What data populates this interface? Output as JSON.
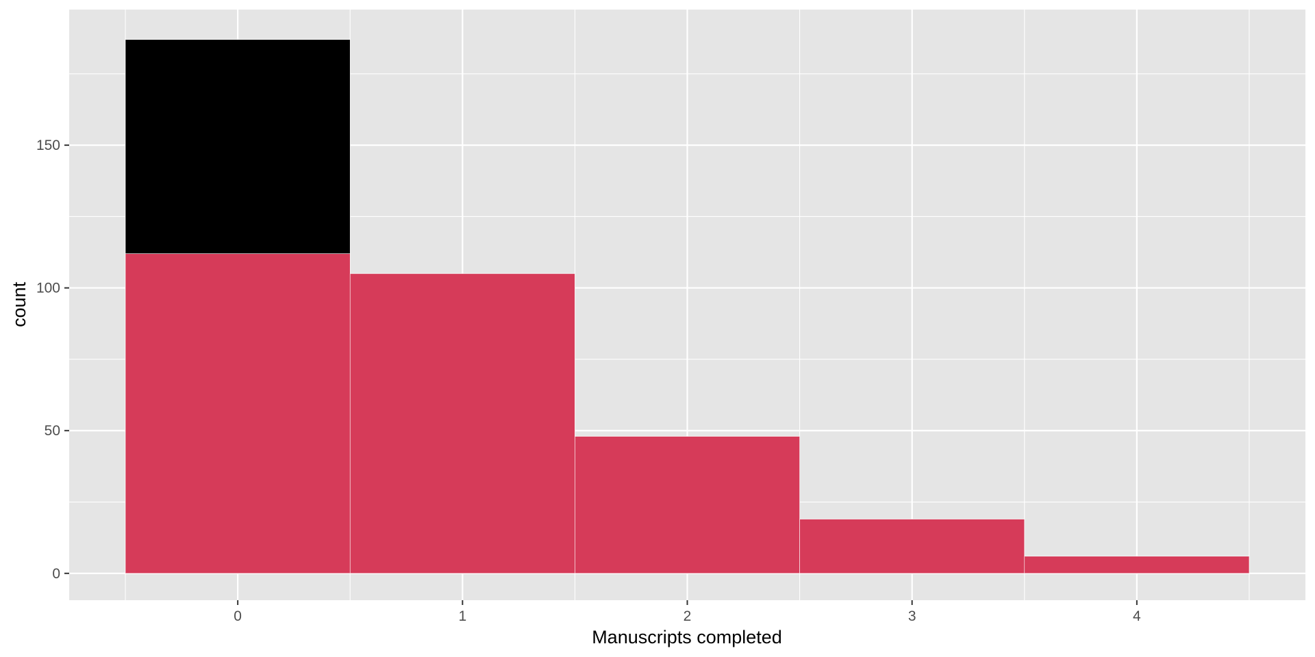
{
  "chart_data": {
    "type": "bar",
    "xlabel": "Manuscripts completed",
    "ylabel": "count",
    "xlim": [
      -0.75,
      4.75
    ],
    "ylim": [
      -9.4,
      197.5
    ],
    "x_ticks": [
      0,
      1,
      2,
      3,
      4
    ],
    "x_tick_labels": [
      "0",
      "1",
      "2",
      "3",
      "4"
    ],
    "y_ticks": [
      0,
      50,
      100,
      150
    ],
    "y_tick_labels": [
      "0",
      "50",
      "100",
      "150"
    ],
    "bin_width": 1,
    "categories": [
      0,
      1,
      2,
      3,
      4
    ],
    "series": [
      {
        "values": [
          112,
          105,
          48,
          19,
          6
        ],
        "color": "#d63b59"
      },
      {
        "values": [
          75,
          0,
          0,
          0,
          0
        ],
        "color": "#000000"
      }
    ],
    "totals": [
      187,
      105,
      48,
      19,
      6
    ],
    "grid": true,
    "panel_background": "#e5e5e5",
    "grid_color": "#ffffff",
    "legend": "none"
  }
}
